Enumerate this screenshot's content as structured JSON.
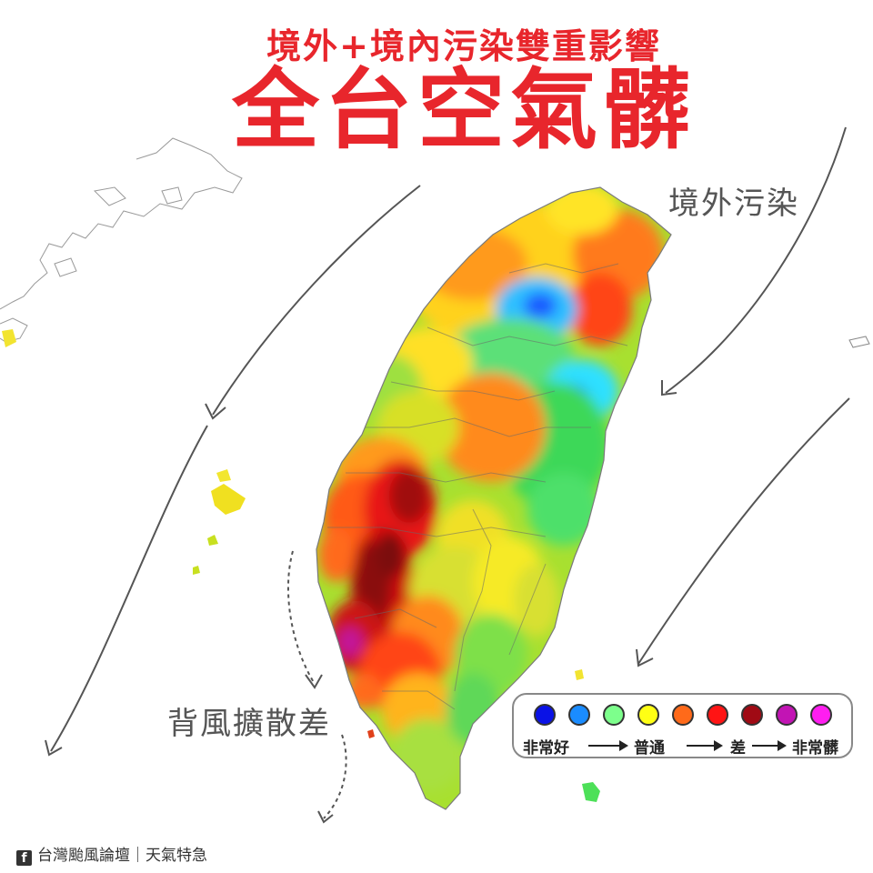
{
  "title": {
    "line1": "境外+境內污染雙重影響",
    "line2": "全台空氣髒"
  },
  "annotations": {
    "outside_pollution": "境外污染",
    "leeward_diffusion": "背風擴散差"
  },
  "legend": {
    "colors": [
      {
        "name": "dark-blue",
        "hex": "#0a12e6"
      },
      {
        "name": "blue",
        "hex": "#1a8cff"
      },
      {
        "name": "green",
        "hex": "#7dff8c"
      },
      {
        "name": "yellow",
        "hex": "#ffff14"
      },
      {
        "name": "orange",
        "hex": "#ff6a1a"
      },
      {
        "name": "red",
        "hex": "#ff1414"
      },
      {
        "name": "dark-red",
        "hex": "#a00a14"
      },
      {
        "name": "purple",
        "hex": "#c214b4"
      },
      {
        "name": "magenta",
        "hex": "#ff1ef0"
      }
    ],
    "labels": {
      "very_good": "非常好",
      "normal": "普通",
      "bad": "差",
      "very_bad": "非常髒"
    }
  },
  "credit": {
    "icon": "facebook-icon",
    "text": "台灣颱風論壇｜天氣特急"
  }
}
